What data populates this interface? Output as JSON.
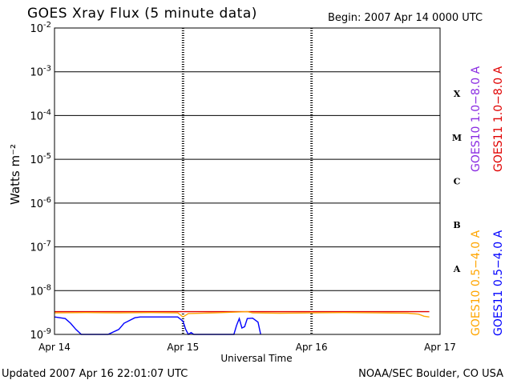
{
  "header": {
    "title": "GOES Xray Flux (5 minute data)",
    "begin": "Begin:  2007 Apr 14 0000 UTC"
  },
  "footer": {
    "updated": "Updated 2007 Apr 16 22:01:07 UTC",
    "credit": "NOAA/SEC Boulder, CO USA"
  },
  "chart_data": {
    "type": "line",
    "title": "GOES Xray Flux (5 minute data)",
    "xlabel": "Universal Time",
    "ylabel": "Watts m⁻²",
    "yscale": "log",
    "ylim": [
      1e-09,
      0.01
    ],
    "xlim": [
      "2007-04-14",
      "2007-04-17"
    ],
    "x_ticks": [
      "Apr 14",
      "Apr 15",
      "Apr 16",
      "Apr 17"
    ],
    "y_ticks": [
      {
        "mantissa": "10",
        "exp": "-9",
        "value": 1e-09
      },
      {
        "mantissa": "10",
        "exp": "-8",
        "value": 1e-08
      },
      {
        "mantissa": "10",
        "exp": "-7",
        "value": 1e-07
      },
      {
        "mantissa": "10",
        "exp": "-6",
        "value": 1e-06
      },
      {
        "mantissa": "10",
        "exp": "-5",
        "value": 1e-05
      },
      {
        "mantissa": "10",
        "exp": "-4",
        "value": 0.0001
      },
      {
        "mantissa": "10",
        "exp": "-3",
        "value": 0.001
      },
      {
        "mantissa": "10",
        "exp": "-2",
        "value": 0.01
      }
    ],
    "flare_classes": [
      {
        "label": "A",
        "value": 3.16e-08
      },
      {
        "label": "B",
        "value": 3.16e-07
      },
      {
        "label": "C",
        "value": 3.16e-06
      },
      {
        "label": "M",
        "value": 3.16e-05
      },
      {
        "label": "X",
        "value": 0.000316
      }
    ],
    "grid": "horizontal decade lines; dashed daily verticals",
    "legend_position": "right, rotated",
    "series": [
      {
        "name": "GOES10 1.0−8.0 A",
        "color": "#8a2be2",
        "points": []
      },
      {
        "name": "GOES11 1.0−8.0 A",
        "color": "#e00000",
        "points": [
          [
            "2007-04-14 00:00",
            3.3e-09
          ],
          [
            "2007-04-15 00:00",
            3.3e-09
          ],
          [
            "2007-04-16 00:00",
            3.3e-09
          ],
          [
            "2007-04-16 22:00",
            3.3e-09
          ]
        ]
      },
      {
        "name": "GOES10 0.5−4.0 A",
        "color": "#ffa500",
        "points": [
          [
            "2007-04-14 00:00",
            3.1e-09
          ],
          [
            "2007-04-14 06:00",
            3.15e-09
          ],
          [
            "2007-04-14 12:00",
            3.1e-09
          ],
          [
            "2007-04-14 18:00",
            3.15e-09
          ],
          [
            "2007-04-14 23:00",
            3.1e-09
          ],
          [
            "2007-04-15 00:00",
            2.5e-09
          ],
          [
            "2007-04-15 01:00",
            3e-09
          ],
          [
            "2007-04-15 06:00",
            3.1e-09
          ],
          [
            "2007-04-15 12:00",
            3.3e-09
          ],
          [
            "2007-04-15 13:00",
            3.1e-09
          ],
          [
            "2007-04-15 18:00",
            3.05e-09
          ],
          [
            "2007-04-16 00:00",
            3.1e-09
          ],
          [
            "2007-04-16 06:00",
            3.15e-09
          ],
          [
            "2007-04-16 12:00",
            3.1e-09
          ],
          [
            "2007-04-16 18:00",
            3.05e-09
          ],
          [
            "2007-04-16 20:00",
            2.9e-09
          ],
          [
            "2007-04-16 21:00",
            2.6e-09
          ],
          [
            "2007-04-16 22:00",
            2.5e-09
          ]
        ]
      },
      {
        "name": "GOES11 0.5−4.0 A",
        "color": "#0000ff",
        "points": [
          [
            "2007-04-14 00:00",
            2.5e-09
          ],
          [
            "2007-04-14 02:00",
            2.3e-09
          ],
          [
            "2007-04-14 03:00",
            1.8e-09
          ],
          [
            "2007-04-14 04:00",
            1.3e-09
          ],
          [
            "2007-04-14 05:00",
            1e-09
          ],
          [
            "2007-04-14 10:00",
            1e-09
          ],
          [
            "2007-04-14 12:00",
            1.3e-09
          ],
          [
            "2007-04-14 13:00",
            1.8e-09
          ],
          [
            "2007-04-14 15:00",
            2.4e-09
          ],
          [
            "2007-04-14 16:00",
            2.5e-09
          ],
          [
            "2007-04-14 23:00",
            2.5e-09
          ],
          [
            "2007-04-15 00:00",
            2e-09
          ],
          [
            "2007-04-15 00:30",
            1.3e-09
          ],
          [
            "2007-04-15 01:00",
            1e-09
          ],
          [
            "2007-04-15 01:30",
            1.1e-09
          ],
          [
            "2007-04-15 02:00",
            1e-09
          ],
          [
            "2007-04-15 02:30",
            1e-09
          ],
          [
            "2007-04-15 09:30",
            1e-09
          ],
          [
            "2007-04-15 10:00",
            1.6e-09
          ],
          [
            "2007-04-15 10:30",
            2.3e-09
          ],
          [
            "2007-04-15 11:00",
            1.4e-09
          ],
          [
            "2007-04-15 11:30",
            1.5e-09
          ],
          [
            "2007-04-15 12:00",
            2.3e-09
          ],
          [
            "2007-04-15 13:00",
            2.35e-09
          ],
          [
            "2007-04-15 14:00",
            1.9e-09
          ],
          [
            "2007-04-15 14:30",
            1e-09
          ]
        ]
      }
    ]
  }
}
